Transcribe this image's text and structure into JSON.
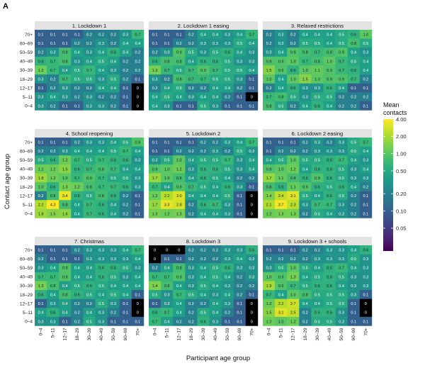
{
  "figure_label": "A",
  "ylabel": "Contact age group",
  "xlabel": "Participant age group",
  "legend": {
    "title_line1": "Mean",
    "title_line2": "contacts",
    "ticks": [
      4.0,
      2.0,
      1.0,
      0.5,
      0.2,
      0.1,
      0.05
    ],
    "tick_labels": [
      "4.00",
      "2.00",
      "1.00",
      "0.50",
      "0.20",
      "0.10",
      "0.05"
    ],
    "scale": "log",
    "range": [
      0.02,
      4.0
    ]
  },
  "colormap": [
    "#440154",
    "#482878",
    "#3e4989",
    "#31688e",
    "#26828e",
    "#1f9e89",
    "#35b779",
    "#6ece58",
    "#b5de2b",
    "#fde725"
  ],
  "chart_data": {
    "type": "heatmap",
    "x_categories": [
      "0–4",
      "5–11",
      "12–17",
      "18–29",
      "30–39",
      "40–49",
      "50–59",
      "60–69",
      "70+"
    ],
    "y_categories": [
      "70+",
      "60–69",
      "50–59",
      "40–49",
      "30–39",
      "18–29",
      "12–17",
      "5–11",
      "0–4"
    ],
    "value_note": "rows listed top (70+) to bottom (0–4); columns 0–4 .. 70+",
    "panels": [
      {
        "title": "1. Lockdown 1",
        "values": [
          [
            0.1,
            0.1,
            0.1,
            0.1,
            0.2,
            0.2,
            0.2,
            0.3,
            0.7
          ],
          [
            0.1,
            0.1,
            0.1,
            0.2,
            0.2,
            0.3,
            0.2,
            0.4,
            0.4
          ],
          [
            0.2,
            0.3,
            0.8,
            0.4,
            0.3,
            0.4,
            0.6,
            0.4,
            0.2
          ],
          [
            0.6,
            0.7,
            0.8,
            0.3,
            0.4,
            0.5,
            0.4,
            0.2,
            0.2
          ],
          [
            1.2,
            0.7,
            0.4,
            0.5,
            0.7,
            0.4,
            0.3,
            0.2,
            0.2
          ],
          [
            0.3,
            0.2,
            0.7,
            0.5,
            0.5,
            0.3,
            0.5,
            0.2,
            0.1
          ],
          [
            0.1,
            0.2,
            0.3,
            0.2,
            0.2,
            0.4,
            0.4,
            0.1,
            0.0
          ],
          [
            0.3,
            0.4,
            0.3,
            0.2,
            0.3,
            0.2,
            0.2,
            0.1,
            0.0
          ],
          [
            0.3,
            0.2,
            0.1,
            0.1,
            0.3,
            0.3,
            0.2,
            0.1,
            0.0
          ]
        ]
      },
      {
        "title": "2. Lockdown 1 easing",
        "values": [
          [
            0.1,
            0.1,
            0.1,
            0.2,
            0.4,
            0.4,
            0.3,
            0.4,
            0.7
          ],
          [
            0.1,
            0.1,
            0.2,
            0.2,
            0.3,
            0.3,
            0.3,
            0.5,
            0.4
          ],
          [
            0.2,
            0.3,
            0.9,
            0.5,
            0.3,
            0.5,
            0.6,
            0.4,
            0.3
          ],
          [
            0.6,
            0.8,
            0.8,
            0.4,
            0.6,
            0.6,
            0.5,
            0.3,
            0.3
          ],
          [
            1.3,
            0.7,
            0.5,
            0.7,
            0.9,
            0.7,
            0.5,
            0.5,
            0.4
          ],
          [
            0.3,
            0.2,
            0.8,
            0.7,
            0.7,
            0.5,
            0.5,
            0.3,
            0.1
          ],
          [
            0.2,
            0.4,
            0.5,
            0.2,
            0.2,
            0.4,
            0.4,
            0.2,
            0.1
          ],
          [
            0.4,
            0.5,
            0.4,
            0.3,
            0.4,
            0.4,
            0.2,
            0.1,
            0.0
          ],
          [
            0.4,
            0.3,
            0.1,
            0.1,
            0.5,
            0.3,
            0.1,
            0.1,
            0.1
          ]
        ]
      },
      {
        "title": "3. Relaxed restrictions",
        "values": [
          [
            0.2,
            0.3,
            0.2,
            0.4,
            0.4,
            0.4,
            0.5,
            0.6,
            1.0
          ],
          [
            0.2,
            0.3,
            0.2,
            0.5,
            0.5,
            0.4,
            0.5,
            0.8,
            0.5
          ],
          [
            0.3,
            0.4,
            0.9,
            0.8,
            0.7,
            0.8,
            0.9,
            0.4,
            0.3
          ],
          [
            0.9,
            0.9,
            1.0,
            0.7,
            0.8,
            1.0,
            0.7,
            0.5,
            0.4
          ],
          [
            1.5,
            0.9,
            0.6,
            1.0,
            1.1,
            0.9,
            0.7,
            0.6,
            0.4
          ],
          [
            1.0,
            0.4,
            1.0,
            1.5,
            1.0,
            0.9,
            0.9,
            0.7,
            0.2
          ],
          [
            0.2,
            0.4,
            0.6,
            0.3,
            0.3,
            0.6,
            0.4,
            0.1,
            0.1
          ],
          [
            0.7,
            0.8,
            0.5,
            0.3,
            0.5,
            0.5,
            0.2,
            0.2,
            0.2
          ],
          [
            0.8,
            0.5,
            0.2,
            0.4,
            0.6,
            0.4,
            0.2,
            0.2,
            0.1
          ]
        ]
      },
      {
        "title": "4. School reopening",
        "values": [
          [
            0.1,
            0.1,
            0.1,
            0.2,
            0.3,
            0.3,
            0.4,
            0.5,
            0.9
          ],
          [
            0.2,
            0.2,
            0.3,
            0.4,
            0.4,
            0.4,
            0.5,
            0.7,
            0.4
          ],
          [
            0.5,
            0.6,
            1.2,
            0.7,
            0.5,
            0.7,
            0.6,
            0.6,
            0.3
          ],
          [
            1.2,
            1.2,
            1.5,
            0.6,
            0.7,
            0.8,
            0.7,
            0.4,
            0.4
          ],
          [
            1.8,
            1.2,
            1.0,
            0.7,
            0.9,
            0.7,
            0.5,
            0.5,
            0.3
          ],
          [
            1.0,
            0.6,
            1.3,
            1.2,
            0.8,
            0.7,
            0.7,
            0.6,
            0.3
          ],
          [
            0.2,
            0.8,
            3.4,
            0.6,
            0.5,
            0.8,
            0.6,
            0.2,
            0.1
          ],
          [
            2.2,
            4.3,
            0.8,
            0.4,
            0.7,
            0.6,
            0.4,
            0.2,
            0.1
          ],
          [
            1.8,
            1.5,
            1.6,
            0.4,
            0.7,
            0.6,
            0.4,
            0.2,
            0.1
          ]
        ]
      },
      {
        "title": "5. Lockdown 2",
        "values": [
          [
            0.1,
            0.1,
            0.1,
            0.1,
            0.2,
            0.2,
            0.3,
            0.4,
            0.7
          ],
          [
            0.1,
            0.1,
            0.2,
            0.2,
            0.2,
            0.3,
            0.2,
            0.5,
            0.3
          ],
          [
            0.3,
            0.5,
            1.0,
            0.4,
            0.5,
            0.5,
            0.7,
            0.3,
            0.4
          ],
          [
            0.9,
            1.0,
            1.2,
            0.3,
            0.6,
            0.6,
            0.5,
            0.3,
            0.4
          ],
          [
            1.7,
            1.0,
            0.8,
            0.4,
            0.6,
            0.5,
            0.4,
            0.2,
            0.2
          ],
          [
            0.7,
            0.4,
            0.9,
            0.7,
            0.5,
            0.4,
            0.6,
            0.3,
            0.1
          ],
          [
            1.2,
            2.2,
            3.0,
            0.4,
            0.4,
            0.4,
            0.5,
            0.1,
            0.0
          ],
          [
            1.7,
            3.3,
            2.8,
            0.2,
            0.6,
            0.7,
            0.3,
            0.1,
            0.0
          ],
          [
            1.3,
            1.2,
            1.3,
            0.2,
            0.4,
            0.4,
            0.3,
            0.1,
            0.0
          ]
        ]
      },
      {
        "title": "6. Lockdown 2 easing",
        "values": [
          [
            0.1,
            0.1,
            0.1,
            0.2,
            0.3,
            0.2,
            0.3,
            0.5,
            0.7
          ],
          [
            0.1,
            0.2,
            0.2,
            0.2,
            0.3,
            0.3,
            0.3,
            0.5,
            0.4
          ],
          [
            0.4,
            0.5,
            1.0,
            0.5,
            0.5,
            0.6,
            0.7,
            0.4,
            0.3
          ],
          [
            0.9,
            1.0,
            1.2,
            0.4,
            0.6,
            0.6,
            0.5,
            0.3,
            0.4
          ],
          [
            1.7,
            1.1,
            0.8,
            0.6,
            0.9,
            0.6,
            0.5,
            0.3,
            0.3
          ],
          [
            0.8,
            0.6,
            1.1,
            0.9,
            0.6,
            0.5,
            0.6,
            0.4,
            0.2
          ],
          [
            1.4,
            2.4,
            3.1,
            0.5,
            0.4,
            0.6,
            0.5,
            0.2,
            0.1
          ],
          [
            2.1,
            3.7,
            2.3,
            0.3,
            0.7,
            0.7,
            0.3,
            0.2,
            0.1
          ],
          [
            1.2,
            1.3,
            1.3,
            0.2,
            0.5,
            0.4,
            0.3,
            0.2,
            0.1
          ]
        ]
      },
      {
        "title": "7. Christmas",
        "values": [
          [
            0.1,
            0.1,
            0.1,
            0.2,
            0.3,
            0.3,
            0.3,
            0.4,
            0.7
          ],
          [
            0.2,
            0.1,
            0.1,
            0.1,
            0.3,
            0.3,
            0.3,
            0.3,
            0.4
          ],
          [
            0.3,
            0.4,
            0.9,
            0.4,
            0.4,
            0.6,
            0.6,
            0.5,
            0.3
          ],
          [
            0.7,
            0.7,
            0.9,
            0.4,
            0.4,
            0.6,
            0.5,
            0.3,
            0.4
          ],
          [
            1.3,
            0.8,
            0.4,
            0.5,
            0.6,
            0.5,
            0.4,
            0.4,
            0.4
          ],
          [
            0.6,
            0.4,
            0.8,
            0.6,
            0.5,
            0.4,
            0.5,
            0.4,
            0.1
          ],
          [
            0.1,
            0.3,
            0.4,
            0.2,
            0.2,
            0.5,
            0.3,
            0.1,
            0.0
          ],
          [
            0.4,
            0.6,
            0.4,
            0.2,
            0.4,
            0.3,
            0.2,
            0.1,
            0.0
          ],
          [
            0.3,
            0.3,
            0.1,
            0.2,
            0.5,
            0.3,
            0.1,
            0.1,
            0.1
          ]
        ]
      },
      {
        "title": "8. Lockdown 3",
        "values": [
          [
            0.0,
            0.0,
            0.0,
            0.2,
            0.2,
            0.2,
            0.3,
            0.3,
            0.6
          ],
          [
            0.0,
            0.1,
            0.1,
            0.2,
            0.2,
            0.2,
            0.3,
            0.4,
            0.3
          ],
          [
            0.2,
            0.4,
            0.8,
            0.3,
            0.4,
            0.5,
            0.6,
            0.3,
            0.3
          ],
          [
            0.7,
            0.7,
            0.9,
            0.3,
            0.4,
            0.5,
            0.4,
            0.2,
            0.3
          ],
          [
            1.4,
            0.8,
            0.4,
            0.3,
            0.5,
            0.4,
            0.3,
            0.2,
            0.2
          ],
          [
            0.5,
            0.3,
            0.7,
            0.5,
            0.4,
            0.3,
            0.4,
            0.2,
            0.1
          ],
          [
            0.1,
            0.3,
            0.4,
            0.2,
            0.2,
            0.4,
            0.3,
            0.1,
            0.0
          ],
          [
            0.6,
            0.7,
            0.4,
            0.2,
            0.5,
            0.4,
            0.2,
            0.1,
            0.0
          ],
          [
            0.7,
            0.4,
            0.2,
            0.2,
            0.6,
            0.3,
            0.1,
            0.1,
            0.0
          ]
        ]
      },
      {
        "title": "9. Lockdown 3 + schools",
        "values": [
          [
            0.1,
            0.1,
            0.1,
            0.2,
            0.2,
            0.3,
            0.3,
            0.4,
            0.6
          ],
          [
            0.2,
            0.2,
            0.2,
            0.2,
            0.3,
            0.3,
            0.3,
            0.5,
            0.3
          ],
          [
            0.3,
            0.5,
            1.0,
            0.5,
            0.4,
            0.6,
            0.7,
            0.4,
            0.3
          ],
          [
            1.0,
            0.9,
            1.3,
            0.4,
            0.5,
            0.6,
            0.5,
            0.3,
            0.3
          ],
          [
            1.9,
            0.9,
            0.7,
            0.5,
            0.6,
            0.6,
            0.4,
            0.3,
            0.3
          ],
          [
            0.7,
            0.4,
            1.0,
            0.8,
            0.5,
            0.5,
            0.5,
            0.3,
            0.1
          ],
          [
            1.2,
            2.2,
            2.7,
            0.4,
            0.4,
            0.5,
            0.5,
            0.1,
            0.0
          ],
          [
            1.5,
            3.1,
            2.5,
            0.2,
            0.6,
            0.6,
            0.3,
            0.1,
            0.0
          ],
          [
            1.2,
            1.0,
            1.2,
            0.2,
            0.5,
            0.5,
            0.3,
            0.1,
            0.1
          ]
        ]
      }
    ]
  }
}
